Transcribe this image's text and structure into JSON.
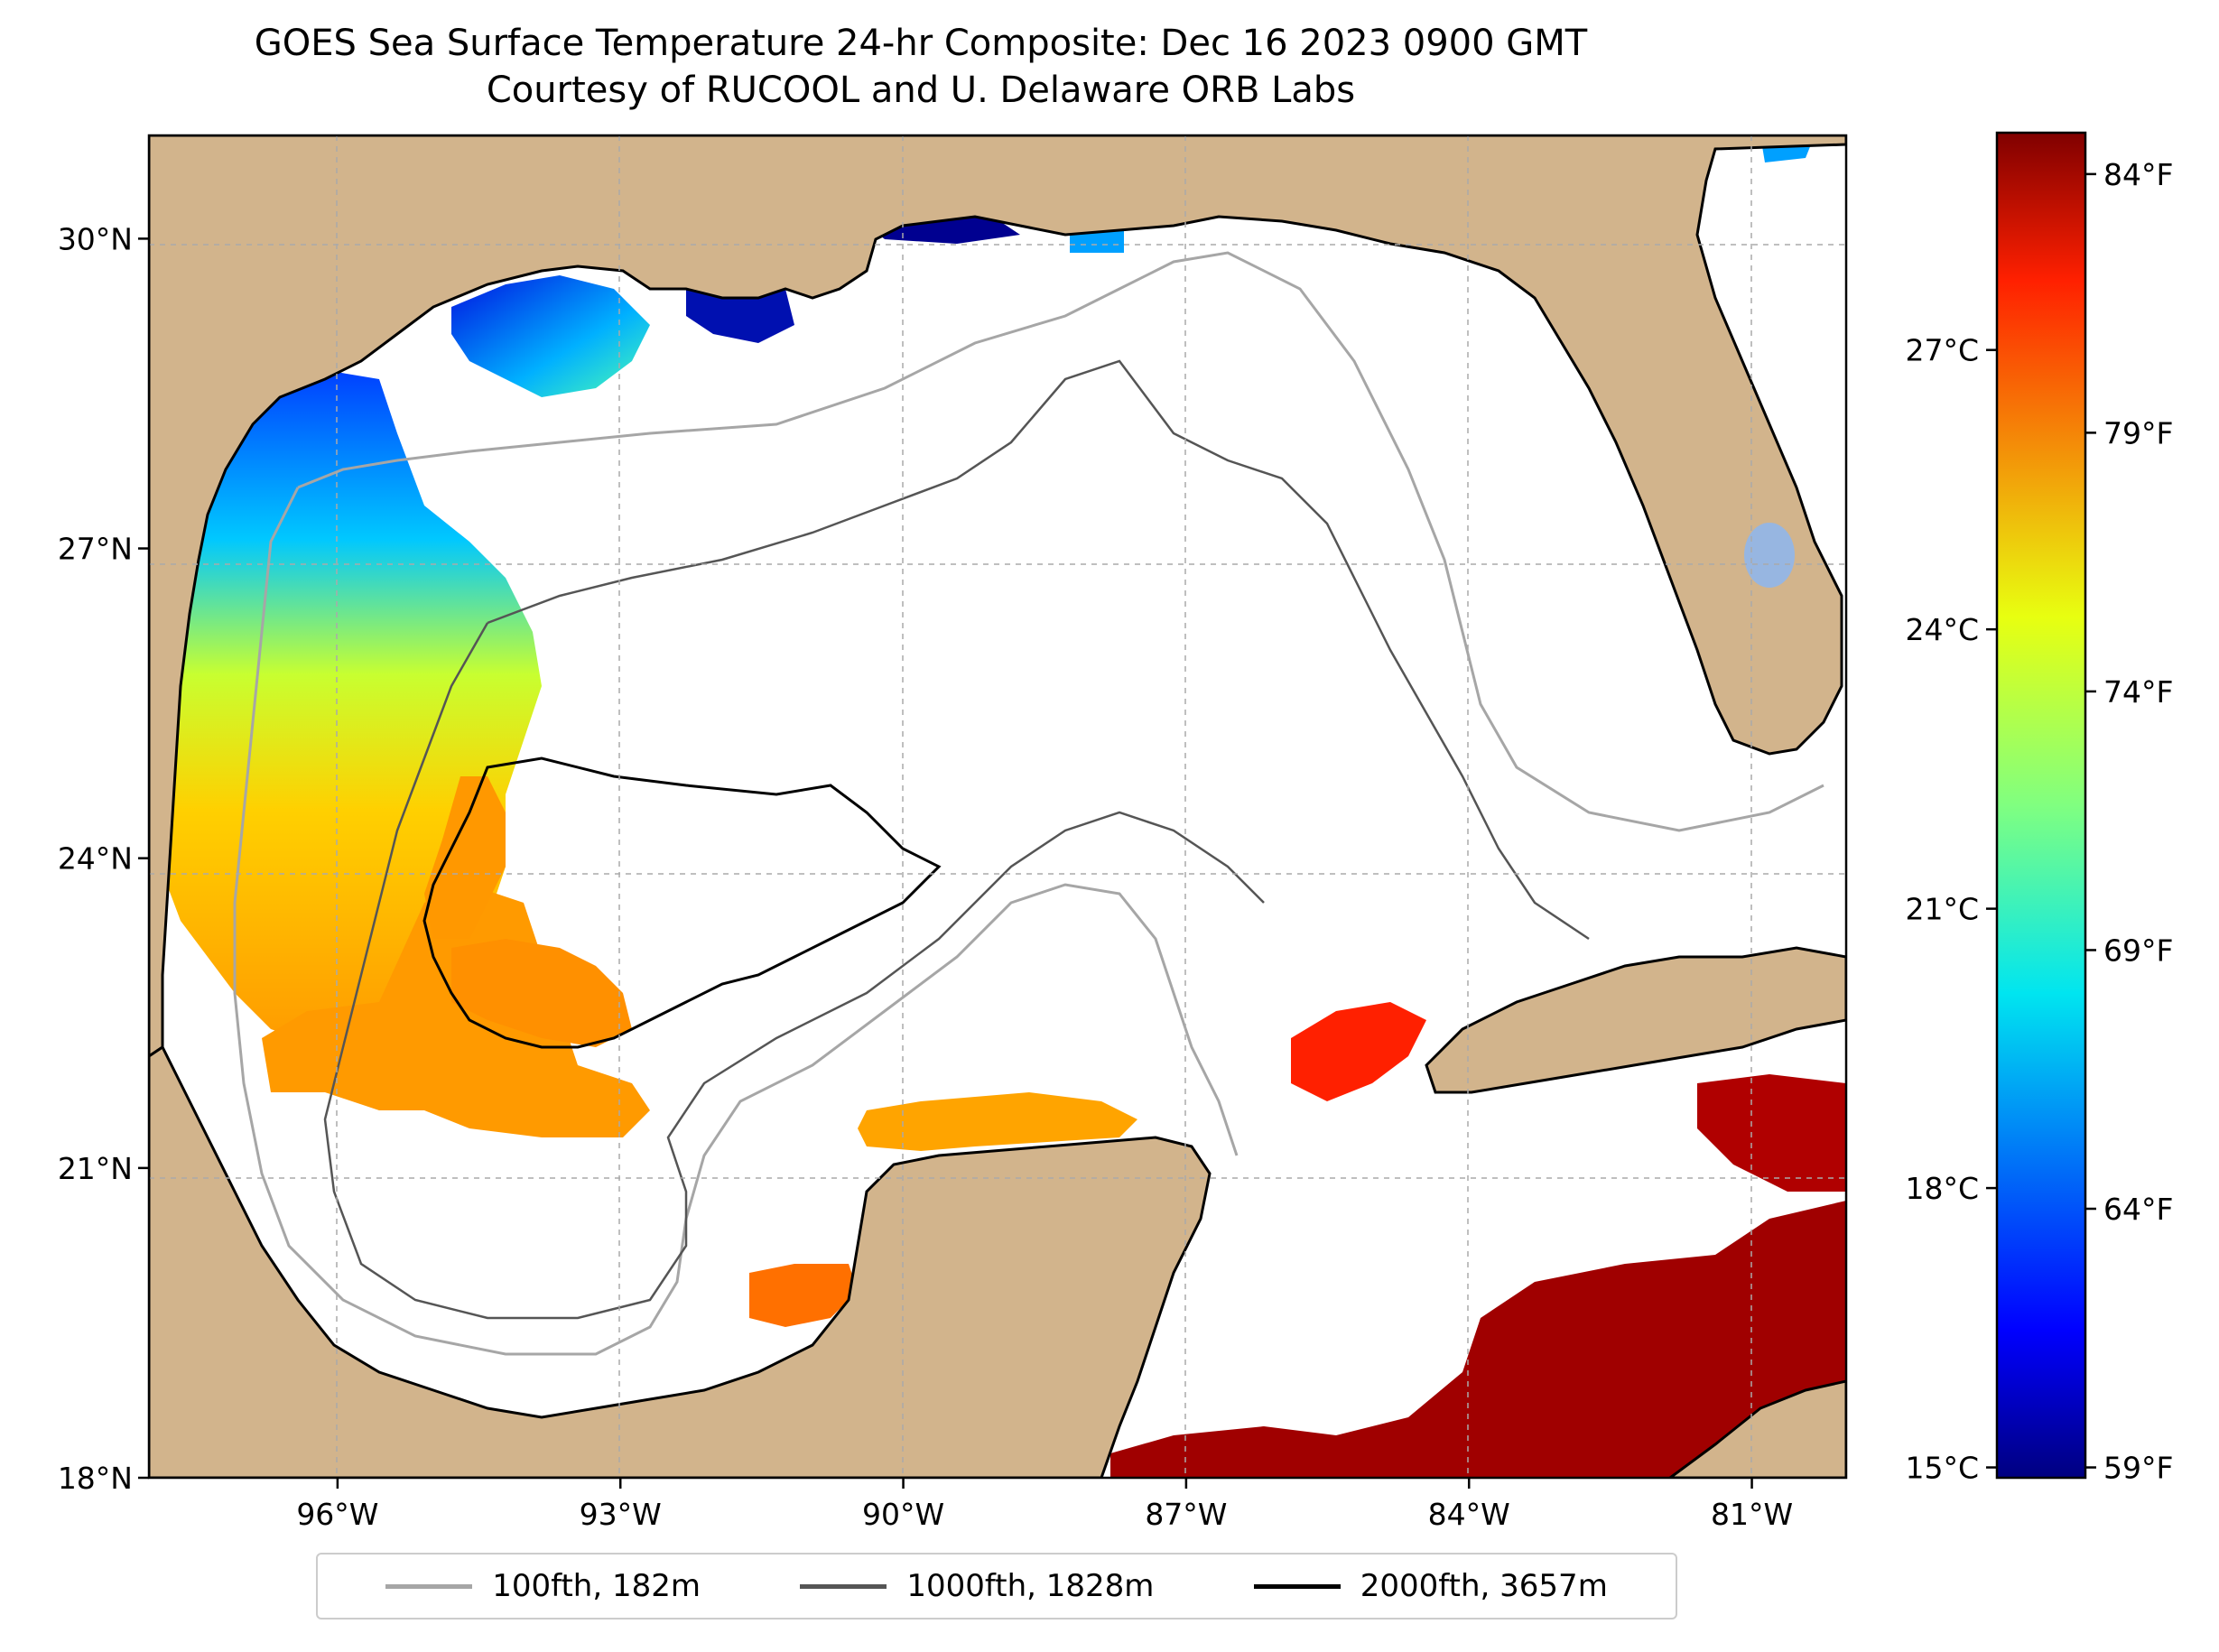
{
  "title": "GOES Sea Surface Temperature 24-hr Composite: Dec 16 2023 0900 GMT",
  "subtitle": "Courtesy of RUCOOL and U. Delaware ORB Labs",
  "map": {
    "extent": {
      "lon": [
        -98,
        -80
      ],
      "lat": [
        18,
        31
      ]
    },
    "lat_ticks": [
      {
        "value": 30,
        "label": "30°N"
      },
      {
        "value": 27,
        "label": "27°N"
      },
      {
        "value": 24,
        "label": "24°N"
      },
      {
        "value": 21,
        "label": "21°N"
      },
      {
        "value": 18,
        "label": "18°N"
      }
    ],
    "lon_ticks": [
      {
        "value": -96,
        "label": "96°W"
      },
      {
        "value": -93,
        "label": "93°W"
      },
      {
        "value": -90,
        "label": "90°W"
      },
      {
        "value": -87,
        "label": "87°W"
      },
      {
        "value": -84,
        "label": "84°W"
      },
      {
        "value": -81,
        "label": "81°W"
      }
    ],
    "colors": {
      "land": "#d2b48c",
      "water_bodies": "#97b6e1",
      "ocean": "#ffffff",
      "grid": "#aaaaaa"
    }
  },
  "colorbar": {
    "celsius_ticks": [
      {
        "value": 27,
        "label": "27°C"
      },
      {
        "value": 24,
        "label": "24°C"
      },
      {
        "value": 21,
        "label": "21°C"
      },
      {
        "value": 18,
        "label": "18°C"
      },
      {
        "value": 15,
        "label": "15°C"
      }
    ],
    "fahrenheit_ticks": [
      {
        "value": 84,
        "label": "84°F"
      },
      {
        "value": 79,
        "label": "79°F"
      },
      {
        "value": 74,
        "label": "74°F"
      },
      {
        "value": 69,
        "label": "69°F"
      },
      {
        "value": 64,
        "label": "64°F"
      },
      {
        "value": 59,
        "label": "59°F"
      }
    ],
    "range_f": [
      58.8,
      84.8
    ],
    "colormap": "jet"
  },
  "legend": {
    "items": [
      {
        "label": "100fth, 182m",
        "color": "#a6a6a6"
      },
      {
        "label": "1000fth, 1828m",
        "color": "#555555"
      },
      {
        "label": "2000fth, 3657m",
        "color": "#000000"
      }
    ]
  }
}
